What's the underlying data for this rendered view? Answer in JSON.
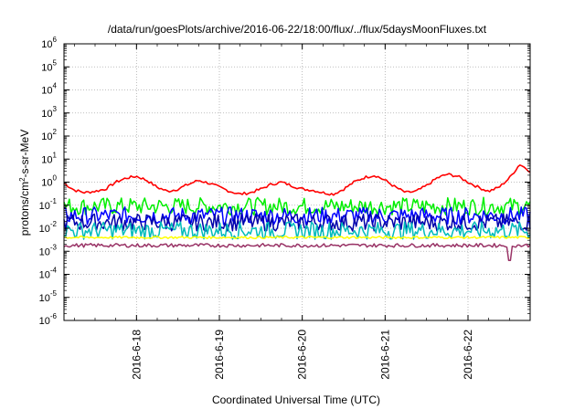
{
  "chart_data": {
    "type": "line",
    "title": "/data/run/goesPlots/archive/2016-06-22/18:00/flux/../flux/5daysMoonFluxes.txt",
    "xlabel": "Coordinated Universal Time (UTC)",
    "ylabel": {
      "pre": "protons/cm",
      "sup": "2",
      "post": "-s-sr-MeV"
    },
    "y_scale": "log",
    "ylim": [
      1e-06,
      1000000.0
    ],
    "y_ticks": [
      {
        "exp": "-6",
        "value": 1e-06
      },
      {
        "exp": "-5",
        "value": 1e-05
      },
      {
        "exp": "-4",
        "value": 0.0001
      },
      {
        "exp": "-3",
        "value": 0.001
      },
      {
        "exp": "-2",
        "value": 0.01
      },
      {
        "exp": "-1",
        "value": 0.1
      },
      {
        "exp": "0",
        "value": 1
      },
      {
        "exp": "1",
        "value": 10
      },
      {
        "exp": "2",
        "value": 100
      },
      {
        "exp": "3",
        "value": 1000
      },
      {
        "exp": "4",
        "value": 10000
      },
      {
        "exp": "5",
        "value": 100000
      },
      {
        "exp": "6",
        "value": 1000000
      }
    ],
    "x_range": [
      "2016-06-17 03:00",
      "2016-06-22 18:00"
    ],
    "x_ticks": [
      {
        "label": "2016-6-18",
        "value": "2016-06-18 00:00"
      },
      {
        "label": "2016-6-19",
        "value": "2016-06-19 00:00"
      },
      {
        "label": "2016-6-20",
        "value": "2016-06-20 00:00"
      },
      {
        "label": "2016-6-21",
        "value": "2016-06-21 00:00"
      },
      {
        "label": "2016-6-22",
        "value": "2016-06-22 00:00"
      }
    ],
    "grid": true,
    "series": [
      {
        "color": "#ff0000",
        "x": [
          "2016-06-17 03:00",
          "2016-06-17 06:00",
          "2016-06-17 09:00",
          "2016-06-17 12:00",
          "2016-06-17 15:00",
          "2016-06-17 18:00",
          "2016-06-17 21:00",
          "2016-06-18 00:00",
          "2016-06-18 03:00",
          "2016-06-18 06:00",
          "2016-06-18 09:00",
          "2016-06-18 12:00",
          "2016-06-18 15:00",
          "2016-06-18 18:00",
          "2016-06-18 21:00",
          "2016-06-19 00:00",
          "2016-06-19 03:00",
          "2016-06-19 06:00",
          "2016-06-19 09:00",
          "2016-06-19 12:00",
          "2016-06-19 15:00",
          "2016-06-19 18:00",
          "2016-06-19 21:00",
          "2016-06-20 00:00",
          "2016-06-20 03:00",
          "2016-06-20 06:00",
          "2016-06-20 09:00",
          "2016-06-20 12:00",
          "2016-06-20 15:00",
          "2016-06-20 18:00",
          "2016-06-20 21:00",
          "2016-06-21 00:00",
          "2016-06-21 03:00",
          "2016-06-21 06:00",
          "2016-06-21 09:00",
          "2016-06-21 12:00",
          "2016-06-21 15:00",
          "2016-06-21 18:00",
          "2016-06-21 21:00",
          "2016-06-22 00:00",
          "2016-06-22 03:00",
          "2016-06-22 06:00",
          "2016-06-22 09:00",
          "2016-06-22 12:00",
          "2016-06-22 15:00",
          "2016-06-22 18:00"
        ],
        "values": [
          0.9,
          0.45,
          0.35,
          0.4,
          0.5,
          1.0,
          1.5,
          1.8,
          1.2,
          0.6,
          0.4,
          0.5,
          0.8,
          1.2,
          0.9,
          0.6,
          0.4,
          0.3,
          0.35,
          0.5,
          0.8,
          1.0,
          0.7,
          0.5,
          0.45,
          0.35,
          0.3,
          0.5,
          1.0,
          1.6,
          2.0,
          1.2,
          0.6,
          0.35,
          0.4,
          0.7,
          1.5,
          2.2,
          1.8,
          1.0,
          0.6,
          0.4,
          0.6,
          1.5,
          6.0,
          3.0
        ]
      },
      {
        "color": "#00ee00",
        "base": 0.09
      },
      {
        "color": "#0000ff",
        "base": 0.035
      },
      {
        "color": "#0000aa",
        "base": 0.018
      },
      {
        "color": "#00bbbb",
        "base": 0.008
      },
      {
        "color": "#ffff00",
        "base": 0.004
      },
      {
        "color": "#993366",
        "base": 0.0018,
        "dip": {
          "x": "2016-06-22 12:00",
          "value": 0.0004
        }
      }
    ]
  }
}
